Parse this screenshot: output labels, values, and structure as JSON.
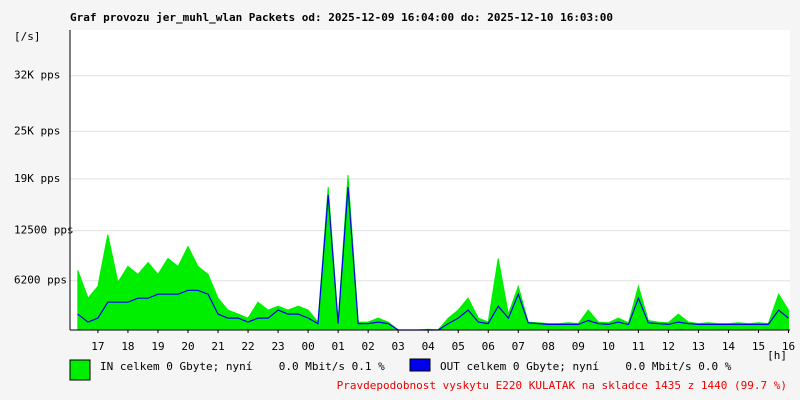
{
  "chart_data": {
    "type": "line",
    "title": "Graf provozu jer_muhl_wlan Packets od: 2025-12-09 16:04:00 do: 2025-12-10 16:03:00",
    "y_unit_label": "[/s]",
    "x_unit_label": "[h]",
    "x": [
      16.33,
      16.67,
      17,
      17.33,
      17.67,
      18,
      18.33,
      18.67,
      19,
      19.33,
      19.67,
      20,
      20.33,
      20.67,
      21,
      21.33,
      21.67,
      22,
      22.33,
      22.67,
      23,
      23.33,
      23.67,
      24,
      24.33,
      24.67,
      25,
      25.33,
      25.67,
      26,
      26.33,
      26.67,
      27,
      27.33,
      27.67,
      28,
      28.33,
      28.67,
      29,
      29.33,
      29.67,
      30,
      30.33,
      30.67,
      31,
      31.33,
      31.67,
      32,
      32.33,
      32.67,
      33,
      33.33,
      33.67,
      34,
      34.33,
      34.67,
      35,
      35.33,
      35.67,
      36,
      36.33,
      36.67,
      37,
      37.33,
      37.67,
      38,
      38.33,
      38.67,
      39,
      39.33,
      39.67,
      40
    ],
    "series": [
      {
        "name": "IN celkem 0 Gbyte; nyní    0.0 Mbit/s 0.1 %",
        "color": "#00ee00",
        "fill": true,
        "values": [
          7500,
          4000,
          5500,
          12000,
          6000,
          8000,
          7000,
          8500,
          7000,
          9000,
          8000,
          10500,
          8000,
          7000,
          4000,
          2500,
          2000,
          1500,
          3500,
          2500,
          3000,
          2500,
          3000,
          2500,
          1000,
          18000,
          1000,
          19500,
          1000,
          1000,
          1500,
          1000,
          0,
          0,
          0,
          100,
          0,
          1500,
          2500,
          4000,
          1500,
          1000,
          9000,
          2000,
          5500,
          1000,
          900,
          800,
          800,
          900,
          800,
          2500,
          1000,
          900,
          1500,
          900,
          5500,
          1200,
          1000,
          900,
          2000,
          1000,
          800,
          900,
          800,
          800,
          900,
          800,
          900,
          800,
          4500,
          2500
        ]
      },
      {
        "name": "OUT celkem 0 Gbyte; nyní    0.0 Mbit/s 0.0 %",
        "color": "#0000ee",
        "fill": false,
        "values": [
          2000,
          1000,
          1500,
          3500,
          3500,
          3500,
          4000,
          4000,
          4500,
          4500,
          4500,
          5000,
          5000,
          4500,
          2000,
          1500,
          1500,
          1000,
          1500,
          1500,
          2500,
          2000,
          2000,
          1500,
          800,
          17000,
          800,
          18000,
          800,
          800,
          1000,
          800,
          0,
          0,
          0,
          0,
          0,
          800,
          1500,
          2500,
          1000,
          800,
          3000,
          1500,
          4500,
          900,
          800,
          700,
          700,
          700,
          700,
          1200,
          800,
          700,
          1000,
          700,
          4000,
          900,
          800,
          700,
          1000,
          800,
          700,
          700,
          700,
          700,
          700,
          700,
          700,
          700,
          2500,
          1500
        ]
      }
    ],
    "xlim": [
      16.07,
      40.05
    ],
    "xticks": [
      17,
      18,
      19,
      20,
      21,
      22,
      23,
      {
        "value": 24,
        "label": "00"
      },
      {
        "value": 25,
        "label": "01"
      },
      {
        "value": 26,
        "label": "02"
      },
      {
        "value": 27,
        "label": "03"
      },
      {
        "value": 28,
        "label": "04"
      },
      {
        "value": 29,
        "label": "05"
      },
      {
        "value": 30,
        "label": "06"
      },
      {
        "value": 31,
        "label": "07"
      },
      {
        "value": 32,
        "label": "08"
      },
      {
        "value": 33,
        "label": "09"
      },
      {
        "value": 34,
        "label": "10"
      },
      {
        "value": 35,
        "label": "11"
      },
      {
        "value": 36,
        "label": "12"
      },
      {
        "value": 37,
        "label": "13"
      },
      {
        "value": 38,
        "label": "14"
      },
      {
        "value": 39,
        "label": "15"
      },
      {
        "value": 40,
        "label": "16"
      }
    ],
    "ylim": [
      0,
      37750
    ],
    "yticks": [
      {
        "value": 6200,
        "label": "6200 pps"
      },
      {
        "value": 12500,
        "label": "12500 pps"
      },
      {
        "value": 19000,
        "label": "19K pps"
      },
      {
        "value": 25000,
        "label": "25K pps"
      },
      {
        "value": 32000,
        "label": "32K pps"
      }
    ],
    "grid": true,
    "note": "Pravdepodobnost vyskytu E220 KULATAK na skladce 1435 z 1440 (99.7 %)"
  }
}
